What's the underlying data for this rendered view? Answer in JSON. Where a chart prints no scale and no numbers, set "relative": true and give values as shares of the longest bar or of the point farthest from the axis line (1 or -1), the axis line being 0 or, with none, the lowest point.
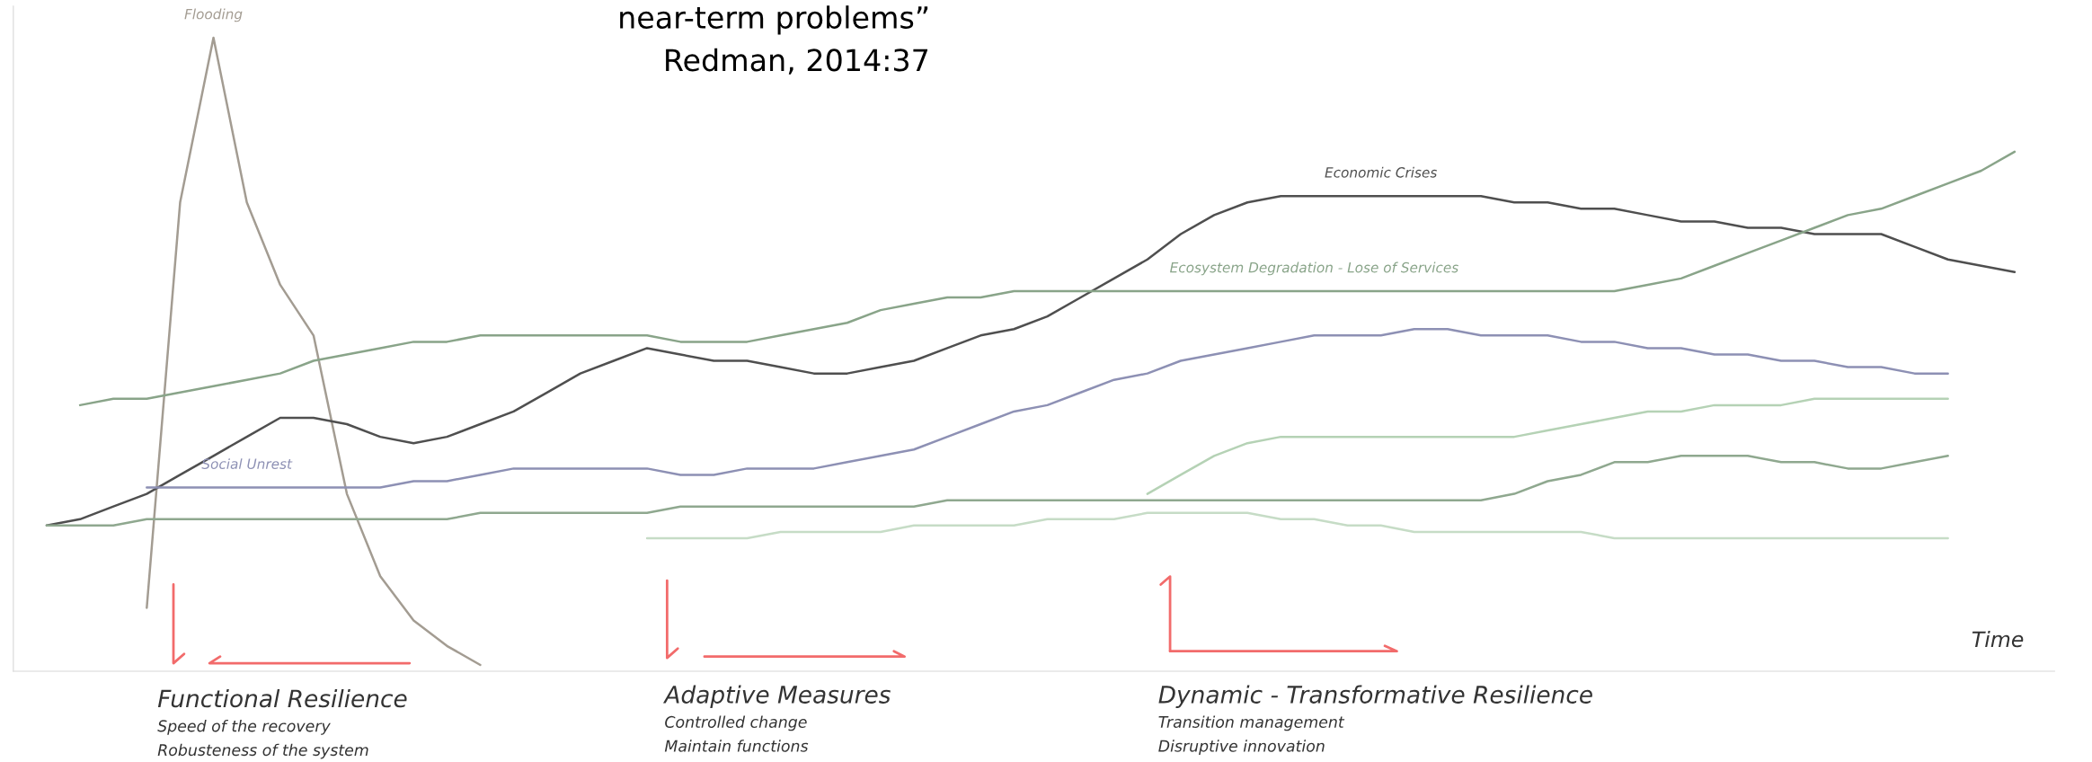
{
  "chart_data": {
    "type": "line",
    "relative": true,
    "xlabel": "Time",
    "categories": [
      null,
      null,
      null,
      null,
      null,
      null,
      null,
      null,
      null,
      null,
      null,
      null,
      null,
      null,
      null,
      null,
      null,
      null,
      null,
      null,
      null,
      null,
      null,
      null,
      null,
      null,
      null,
      null,
      null,
      null,
      null,
      null,
      null,
      null,
      null,
      null,
      null,
      null,
      null,
      null,
      null,
      null,
      null,
      null,
      null,
      null,
      null,
      null,
      null,
      null,
      null,
      null,
      null,
      null,
      null,
      null,
      null,
      null,
      null,
      null,
      null,
      null
    ],
    "series": [
      {
        "name": "Flooding",
        "color": "#a39c92",
        "values": [
          null,
          null,
          null,
          null,
          0.1,
          0.74,
          1.0,
          0.74,
          0.61,
          0.53,
          0.28,
          0.15,
          0.08,
          0.04,
          0.01,
          null,
          null,
          null,
          null,
          null,
          null,
          null,
          null,
          null,
          null,
          null,
          null,
          null,
          null,
          null,
          null,
          null,
          null,
          null,
          null,
          null,
          null,
          null,
          null,
          null,
          null,
          null,
          null,
          null,
          null,
          null,
          null,
          null,
          null,
          null,
          null,
          null,
          null,
          null,
          null,
          null,
          null,
          null,
          null,
          null,
          null,
          null
        ]
      },
      {
        "name": "Economic Crises",
        "color": "#4f4f4f",
        "values": [
          null,
          0.23,
          0.24,
          0.26,
          0.28,
          0.31,
          0.34,
          0.37,
          0.4,
          0.4,
          0.39,
          0.37,
          0.36,
          0.37,
          0.39,
          0.41,
          0.44,
          0.47,
          0.49,
          0.51,
          0.5,
          0.49,
          0.49,
          0.48,
          0.47,
          0.47,
          0.48,
          0.49,
          0.51,
          0.53,
          0.54,
          0.56,
          0.59,
          0.62,
          0.65,
          0.69,
          0.72,
          0.74,
          0.75,
          0.75,
          0.75,
          0.75,
          0.75,
          0.75,
          0.75,
          0.74,
          0.74,
          0.73,
          0.73,
          0.72,
          0.71,
          0.71,
          0.7,
          0.7,
          0.69,
          0.69,
          0.69,
          0.67,
          0.65,
          0.64,
          0.63,
          null
        ]
      },
      {
        "name": "Ecosystem Degradation - Lose of Services",
        "color": "#89a489",
        "values": [
          null,
          null,
          0.42,
          0.43,
          0.43,
          0.44,
          0.45,
          0.46,
          0.47,
          0.49,
          0.5,
          0.51,
          0.52,
          0.52,
          0.53,
          0.53,
          0.53,
          0.53,
          0.53,
          0.53,
          0.52,
          0.52,
          0.52,
          0.53,
          0.54,
          0.55,
          0.57,
          0.58,
          0.59,
          0.59,
          0.6,
          0.6,
          0.6,
          0.6,
          0.6,
          0.6,
          0.6,
          0.6,
          0.6,
          0.6,
          0.6,
          0.6,
          0.6,
          0.6,
          0.6,
          0.6,
          0.6,
          0.6,
          0.6,
          0.61,
          0.62,
          0.64,
          0.66,
          0.68,
          0.7,
          0.72,
          0.73,
          0.75,
          0.77,
          0.79,
          0.82,
          null
        ]
      },
      {
        "name": "Social Unrest",
        "color": "#8d90b4",
        "values": [
          null,
          null,
          null,
          null,
          0.29,
          0.29,
          0.29,
          0.29,
          0.29,
          0.29,
          0.29,
          0.29,
          0.3,
          0.3,
          0.31,
          0.32,
          0.32,
          0.32,
          0.32,
          0.32,
          0.31,
          0.31,
          0.32,
          0.32,
          0.32,
          0.33,
          0.34,
          0.35,
          0.37,
          0.39,
          0.41,
          0.42,
          0.44,
          0.46,
          0.47,
          0.49,
          0.5,
          0.51,
          0.52,
          0.53,
          0.53,
          0.53,
          0.54,
          0.54,
          0.53,
          0.53,
          0.53,
          0.52,
          0.52,
          0.51,
          0.51,
          0.5,
          0.5,
          0.49,
          0.49,
          0.48,
          0.48,
          0.47,
          0.47,
          null,
          null,
          null
        ]
      },
      {
        "color": "#8fa88f",
        "values": [
          null,
          0.23,
          0.23,
          0.23,
          0.24,
          0.24,
          0.24,
          0.24,
          0.24,
          0.24,
          0.24,
          0.24,
          0.24,
          0.24,
          0.25,
          0.25,
          0.25,
          0.25,
          0.25,
          0.25,
          0.26,
          0.26,
          0.26,
          0.26,
          0.26,
          0.26,
          0.26,
          0.26,
          0.27,
          0.27,
          0.27,
          0.27,
          0.27,
          0.27,
          0.27,
          0.27,
          0.27,
          0.27,
          0.27,
          0.27,
          0.27,
          0.27,
          0.27,
          0.27,
          0.27,
          0.28,
          0.3,
          0.31,
          0.33,
          0.33,
          0.34,
          0.34,
          0.34,
          0.33,
          0.33,
          0.32,
          0.32,
          0.33,
          0.34,
          null,
          null,
          null
        ]
      },
      {
        "color": "#b5d2b5",
        "values": [
          null,
          null,
          null,
          null,
          null,
          null,
          null,
          null,
          null,
          null,
          null,
          null,
          null,
          null,
          null,
          null,
          null,
          null,
          null,
          null,
          null,
          null,
          null,
          null,
          null,
          null,
          null,
          null,
          null,
          null,
          null,
          null,
          null,
          null,
          0.28,
          0.31,
          0.34,
          0.36,
          0.37,
          0.37,
          0.37,
          0.37,
          0.37,
          0.37,
          0.37,
          0.37,
          0.38,
          0.39,
          0.4,
          0.41,
          0.41,
          0.42,
          0.42,
          0.42,
          0.43,
          0.43,
          0.43,
          0.43,
          0.43,
          null,
          null,
          null
        ]
      },
      {
        "color": "#c6dcc6",
        "values": [
          null,
          null,
          null,
          null,
          null,
          null,
          null,
          null,
          null,
          null,
          null,
          null,
          null,
          null,
          null,
          null,
          null,
          null,
          null,
          0.21,
          0.21,
          0.21,
          0.21,
          0.22,
          0.22,
          0.22,
          0.22,
          0.23,
          0.23,
          0.23,
          0.23,
          0.24,
          0.24,
          0.24,
          0.25,
          0.25,
          0.25,
          0.25,
          0.24,
          0.24,
          0.23,
          0.23,
          0.22,
          0.22,
          0.22,
          0.22,
          0.22,
          0.22,
          0.21,
          0.21,
          0.21,
          0.21,
          0.21,
          0.21,
          0.21,
          0.21,
          0.21,
          0.21,
          0.21,
          null,
          null,
          null
        ]
      }
    ],
    "annotations": [
      "near-term problems”",
      "Redman, 2014:37",
      "Functional Resilience",
      "Speed of the recovery",
      "Robusteness of the system",
      "Adaptive Measures",
      "Controlled change",
      "Maintain functions",
      "Dynamic - Transformative Resilience",
      "Transition management",
      "Disruptive innovation"
    ]
  }
}
